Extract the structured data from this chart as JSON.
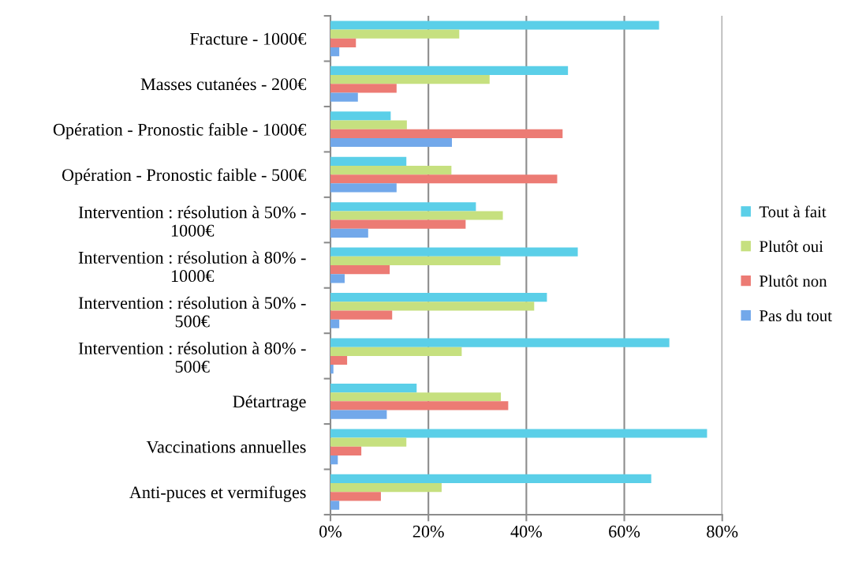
{
  "chart_data": {
    "type": "bar",
    "orientation": "horizontal",
    "categories": [
      "Fracture - 1000€",
      "Masses cutanées - 200€",
      "Opération - Pronostic faible - 1000€",
      "Opération - Pronostic faible - 500€",
      "Intervention : résolution à 50% -\n1000€",
      "Intervention : résolution à 80% -\n1000€",
      "Intervention : résolution à 50% -\n500€",
      "Intervention : résolution à 80% -\n500€",
      "Détartrage",
      "Vaccinations annuelles",
      "Anti-puces et vermifuges"
    ],
    "series": [
      {
        "name": "Tout à fait",
        "color": "#5bcfe8",
        "values": [
          67.1,
          48.5,
          12.3,
          15.5,
          29.7,
          50.5,
          44.2,
          69.2,
          17.6,
          76.9,
          65.5
        ]
      },
      {
        "name": "Plutôt oui",
        "color": "#c6e07f",
        "values": [
          26.3,
          32.5,
          15.6,
          24.7,
          35.2,
          34.7,
          41.6,
          26.8,
          34.8,
          15.5,
          22.7
        ]
      },
      {
        "name": "Plutôt non",
        "color": "#ec7b74",
        "values": [
          5.2,
          13.5,
          47.4,
          46.3,
          27.6,
          12.1,
          12.6,
          3.4,
          36.3,
          6.3,
          10.3
        ]
      },
      {
        "name": "Pas du tout",
        "color": "#72a8ea",
        "values": [
          1.8,
          5.6,
          24.8,
          13.5,
          7.7,
          2.9,
          1.8,
          0.6,
          11.5,
          1.5,
          1.8
        ]
      }
    ],
    "xlim": [
      0,
      80
    ],
    "xticks": [
      {
        "value": 0,
        "label": "0%"
      },
      {
        "value": 20,
        "label": "20%"
      },
      {
        "value": 40,
        "label": "40%"
      },
      {
        "value": 60,
        "label": "60%"
      },
      {
        "value": 80,
        "label": "80%"
      }
    ],
    "grid": "x",
    "legend": "right"
  }
}
